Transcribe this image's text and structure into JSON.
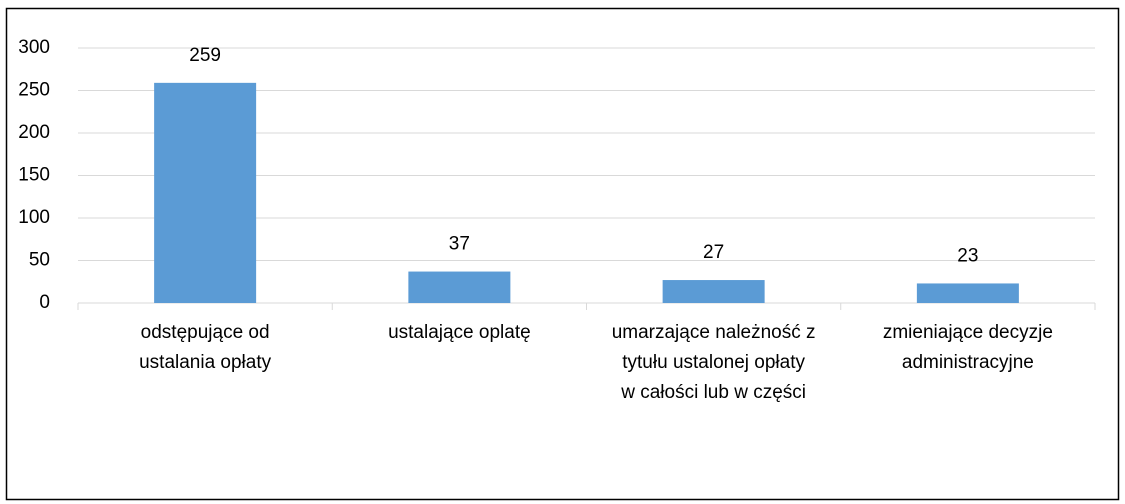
{
  "chart_data": {
    "type": "bar",
    "categories": [
      "odstępujące od\nustalania opłaty",
      "ustalające oplatę",
      "umarzające należność z\ntytułu ustalonej opłaty\nw całości lub w części",
      "zmieniające decyzje\nadministracyjne"
    ],
    "values": [
      259,
      37,
      27,
      23
    ],
    "color": "#5b9bd5",
    "ylim": [
      0,
      300
    ],
    "yticks": [
      0,
      50,
      100,
      150,
      200,
      250,
      300
    ],
    "grid": true
  }
}
